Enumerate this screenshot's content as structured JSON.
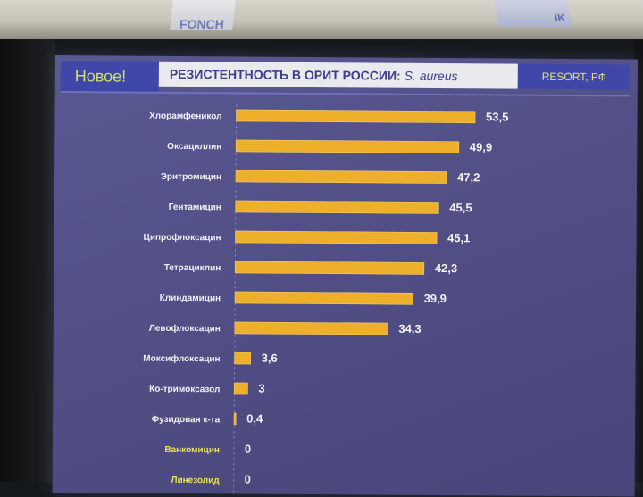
{
  "banners": {
    "left_text": "FONCH",
    "right_text": "IK"
  },
  "slide": {
    "new_label": "Новое!",
    "title_main": "РЕЗИСТЕНТНОСТЬ В ОРИТ РОССИИ: ",
    "title_species": "S. aureus",
    "study_label": "RESORT, РФ"
  },
  "colors": {
    "bar": "#eeb02a",
    "background": "#524f86",
    "header_blue": "#3f48a8",
    "highlight_label": "#e6e25a"
  },
  "chart_data": {
    "type": "bar",
    "orientation": "horizontal",
    "title": "",
    "xlabel": "",
    "ylabel": "",
    "xlim": [
      0,
      55
    ],
    "grid": false,
    "categories": [
      "Хлорамфеникол",
      "Оксациллин",
      "Эритромицин",
      "Гентамицин",
      "Ципрофлоксацин",
      "Тетрациклин",
      "Клиндамицин",
      "Левофлоксацин",
      "Моксифлоксацин",
      "Ко-тримоксазол",
      "Фузидовая к-та",
      "Ванкомицин",
      "Линезолид"
    ],
    "values": [
      53.5,
      49.9,
      47.2,
      45.5,
      45.1,
      42.3,
      39.9,
      34.3,
      3.6,
      3,
      0.4,
      0,
      0
    ],
    "value_labels": [
      "53,5",
      "49,9",
      "47,2",
      "45,5",
      "45,1",
      "42,3",
      "39,9",
      "34,3",
      "3,6",
      "3",
      "0,4",
      "0",
      "0"
    ],
    "highlighted": [
      false,
      false,
      false,
      false,
      false,
      false,
      false,
      false,
      false,
      false,
      false,
      true,
      true
    ]
  }
}
